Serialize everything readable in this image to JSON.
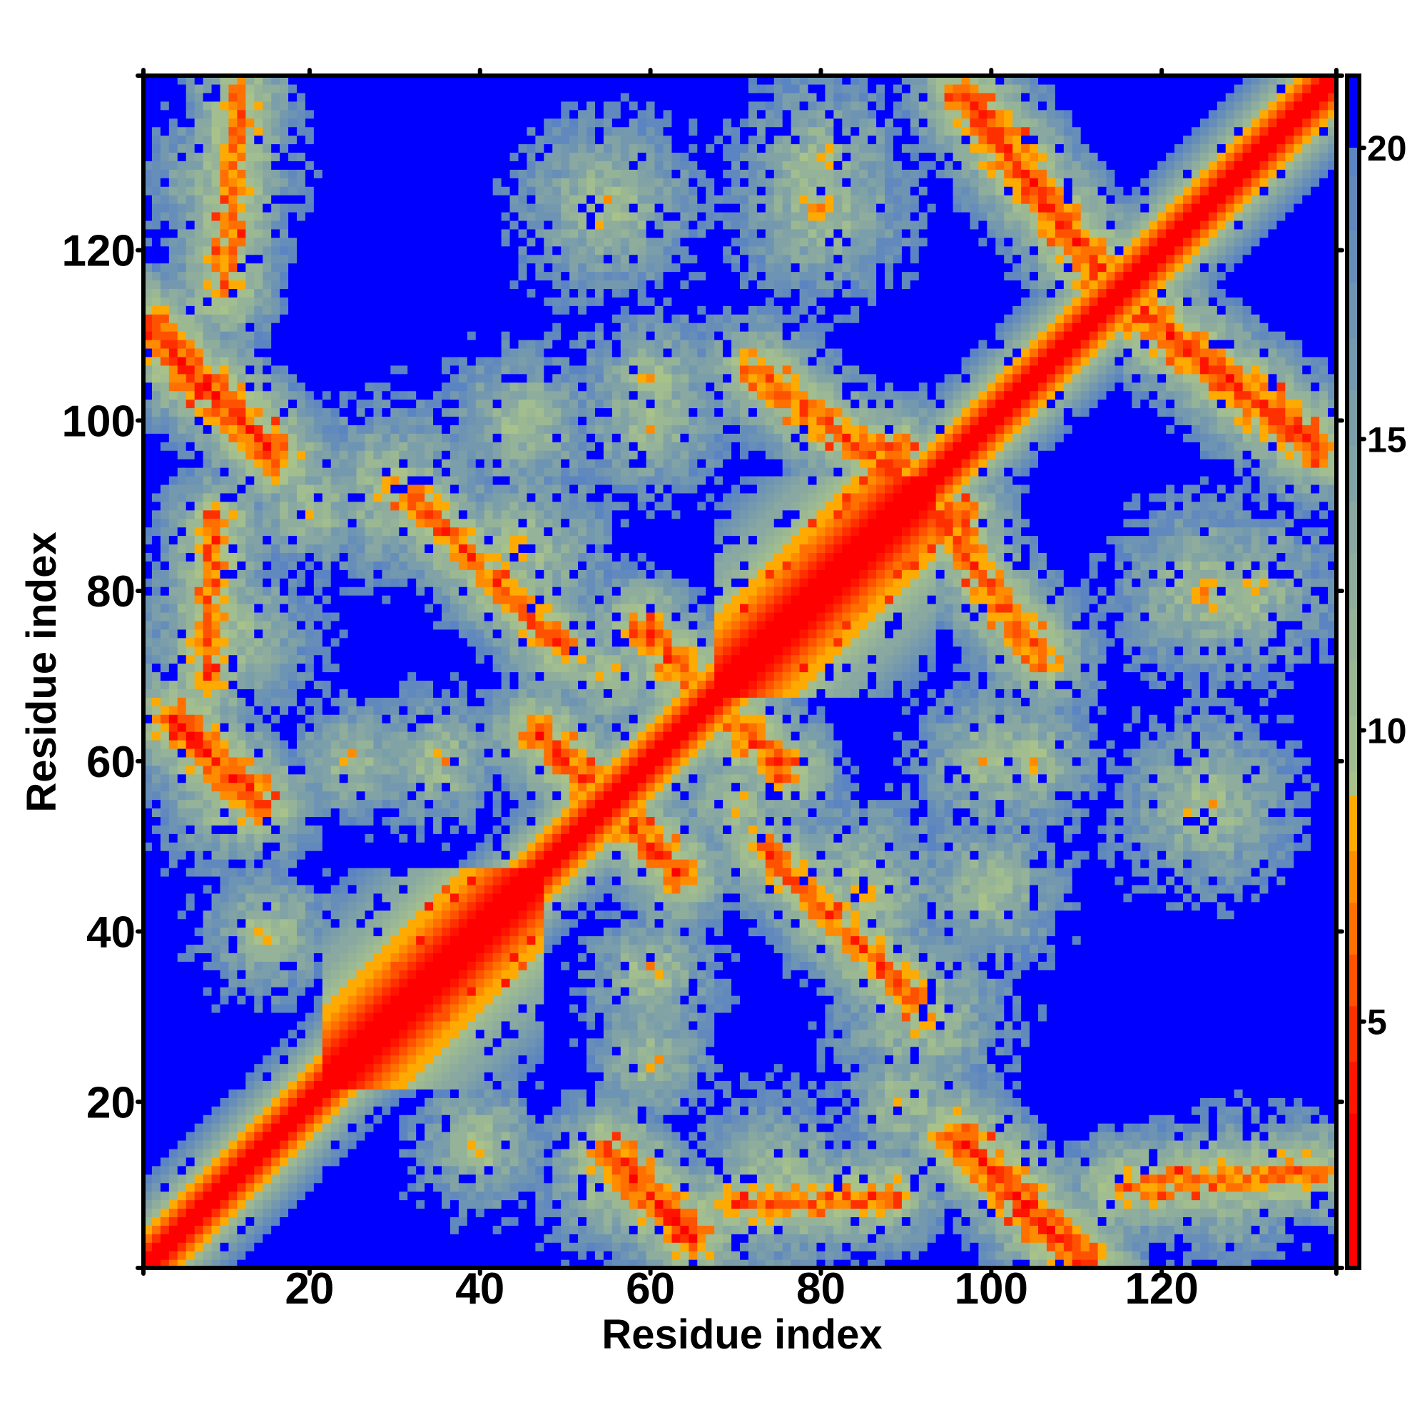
{
  "chart_data": {
    "type": "heatmap",
    "title": "",
    "xlabel": "Residue index",
    "ylabel": "Residue index",
    "n_residues": 140,
    "xlim": [
      0.5,
      140.5
    ],
    "ylim": [
      0.5,
      140.5
    ],
    "xticks": [
      20,
      40,
      60,
      80,
      100,
      120
    ],
    "yticks": [
      20,
      40,
      60,
      80,
      100,
      120
    ],
    "colorbar": {
      "range": [
        0.77,
        21.24
      ],
      "ticks": [
        5,
        10,
        15,
        20
      ],
      "tick_labels": [
        "5",
        "10",
        "15",
        "20"
      ],
      "steps": [
        {
          "max": 3.45,
          "color": "#ff0000"
        },
        {
          "max": 4.35,
          "color": "#ff1400"
        },
        {
          "max": 5.25,
          "color": "#ff3000"
        },
        {
          "max": 6.15,
          "color": "#ff5200"
        },
        {
          "max": 7.06,
          "color": "#ff7000"
        },
        {
          "max": 7.96,
          "color": "#ff8c00"
        },
        {
          "max": 8.86,
          "color": "#ffaa00"
        }
      ],
      "gradient_low": "#a8c28a",
      "gradient_high": "#5a84c2",
      "gradient_range": [
        8.86,
        20
      ],
      "saturated_color": "#0000ff"
    },
    "structure": {
      "background_value": 22,
      "diagonal": {
        "slope": 1.9,
        "offset": 0.8
      },
      "helices": [
        [
          22,
          47
        ],
        [
          68,
          93
        ]
      ],
      "helix_diagonal": {
        "slope": 0.85,
        "offset": 1.2
      },
      "contact_lines": [
        {
          "from": [
            1,
            111
          ],
          "to": [
            16,
            96
          ],
          "dmin": 4.5
        },
        {
          "from": [
            4,
            65
          ],
          "to": [
            14,
            55
          ],
          "dmin": 4.5
        },
        {
          "from": [
            47,
            63
          ],
          "to": [
            61,
            49
          ],
          "dmin": 5
        },
        {
          "from": [
            97,
            138
          ],
          "to": [
            113,
            117
          ],
          "dmin": 4.5
        },
        {
          "from": [
            72,
            106
          ],
          "to": [
            97,
            88
          ],
          "dmin": 5.5
        },
        {
          "from": [
            62,
            72
          ],
          "to": [
            76,
            59
          ],
          "dmin": 5.5
        },
        {
          "from": [
            32,
            91
          ],
          "to": [
            50,
            73
          ],
          "dmin": 6
        },
        {
          "from": [
            8,
            70
          ],
          "to": [
            9,
            88
          ],
          "dmin": 6
        },
        {
          "from": [
            115,
            10
          ],
          "to": [
            138,
            12
          ],
          "dmin": 6
        }
      ],
      "clouds": [
        {
          "c": [
            10,
            128
          ],
          "r": 10
        },
        {
          "c": [
            55,
            125
          ],
          "r": 11
        },
        {
          "c": [
            80,
            125
          ],
          "r": 12
        },
        {
          "c": [
            60,
            100
          ],
          "r": 10
        },
        {
          "c": [
            30,
            92
          ],
          "r": 12
        },
        {
          "c": [
            10,
            55
          ],
          "r": 9
        },
        {
          "c": [
            60,
            35
          ],
          "r": 9
        },
        {
          "c": [
            75,
            10
          ],
          "r": 12
        },
        {
          "c": [
            128,
            10
          ],
          "r": 10
        },
        {
          "c": [
            125,
            55
          ],
          "r": 12
        },
        {
          "c": [
            130,
            80
          ],
          "r": 11
        },
        {
          "c": [
            105,
            60
          ],
          "r": 9
        },
        {
          "c": [
            100,
            45
          ],
          "r": 10
        },
        {
          "c": [
            85,
            45
          ],
          "r": 12
        },
        {
          "c": [
            90,
            20
          ],
          "r": 9
        },
        {
          "c": [
            40,
            15
          ],
          "r": 9
        },
        {
          "c": [
            25,
            60
          ],
          "r": 8
        },
        {
          "c": [
            70,
            55
          ],
          "r": 8
        }
      ]
    }
  }
}
